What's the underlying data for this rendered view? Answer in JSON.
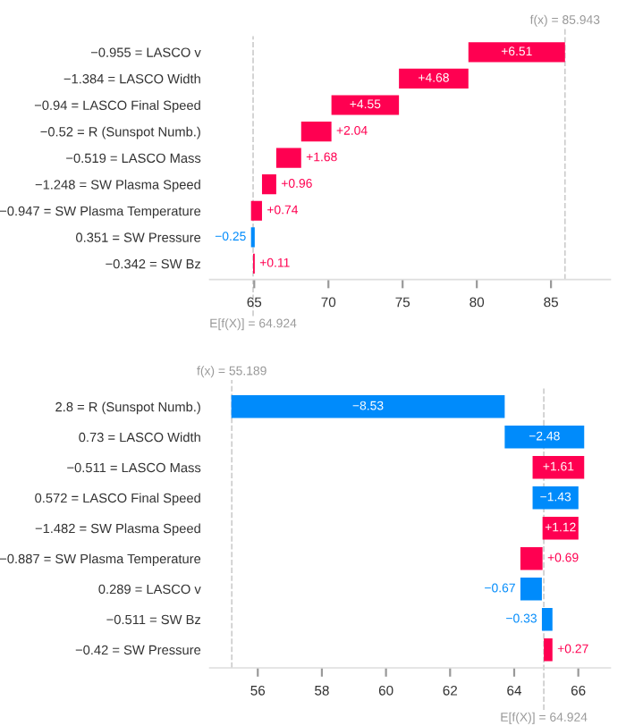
{
  "chart_data": [
    {
      "type": "bar",
      "orientation": "horizontal",
      "categories": [
        "−0.955 = LASCO v",
        "−1.384 = LASCO Width",
        "−0.94 = LASCO Final Speed",
        "−0.52 = R (Sunspot Numb.)",
        "−0.519 = LASCO Mass",
        "−1.248 = SW Plasma Speed",
        "−0.947 = SW Plasma Temperature",
        "0.351 = SW Pressure",
        "−0.342 = SW Bz"
      ],
      "values": [
        6.51,
        4.68,
        4.55,
        2.04,
        1.68,
        0.96,
        0.74,
        -0.25,
        0.11
      ],
      "base": [
        79.434,
        74.754,
        70.204,
        68.164,
        66.484,
        65.524,
        64.784,
        65.034,
        64.924
      ],
      "colors": [
        "#ff0051",
        "#ff0051",
        "#ff0051",
        "#ff0051",
        "#ff0051",
        "#ff0051",
        "#ff0051",
        "#008bfb",
        "#ff0051"
      ],
      "value_labels": [
        "+6.51",
        "+4.68",
        "+4.55",
        "+2.04",
        "+1.68",
        "+0.96",
        "+0.74",
        "−0.25",
        "+0.11"
      ],
      "xlim": [
        62,
        89
      ],
      "xticks": [
        65,
        70,
        75,
        80,
        85
      ],
      "ref_lines": [
        {
          "axis": "x",
          "value": 85.943,
          "label": "f(x) = 85.943",
          "color": "#cccccc",
          "line_style": "dashed"
        },
        {
          "axis": "x",
          "value": 64.924,
          "label": "E[f(X)] = 64.924",
          "color": "#cccccc",
          "line_style": "dashed"
        }
      ],
      "grid": false,
      "legend": false
    },
    {
      "type": "bar",
      "orientation": "horizontal",
      "categories": [
        "2.8 = R (Sunspot Numb.)",
        "0.73 = LASCO Width",
        "−0.511 = LASCO Mass",
        "0.572 = LASCO Final Speed",
        "−1.482 = SW Plasma Speed",
        "−0.887 = SW Plasma Temperature",
        "0.289 = LASCO v",
        "−0.511 = SW Bz",
        "−0.42 = SW Pressure"
      ],
      "values": [
        -8.53,
        -2.48,
        1.61,
        -1.43,
        1.12,
        0.69,
        -0.67,
        -0.33,
        0.27
      ],
      "base": [
        63.704,
        66.184,
        64.574,
        66.004,
        64.884,
        64.194,
        64.864,
        65.194,
        64.924
      ],
      "colors": [
        "#008bfb",
        "#008bfb",
        "#ff0051",
        "#008bfb",
        "#ff0051",
        "#ff0051",
        "#008bfb",
        "#008bfb",
        "#ff0051"
      ],
      "value_labels": [
        "−8.53",
        "−2.48",
        "+1.61",
        "−1.43",
        "+1.12",
        "+0.69",
        "−0.67",
        "−0.33",
        "+0.27"
      ],
      "xlim": [
        54.5,
        67
      ],
      "xticks": [
        56,
        58,
        60,
        62,
        64,
        66
      ],
      "ref_lines": [
        {
          "axis": "x",
          "value": 55.189,
          "label": "f(x) = 55.189",
          "color": "#cccccc",
          "line_style": "dashed"
        },
        {
          "axis": "x",
          "value": 64.924,
          "label": "E[f(X)] = 64.924",
          "color": "#cccccc",
          "line_style": "dashed"
        }
      ],
      "grid": false,
      "legend": false
    }
  ]
}
